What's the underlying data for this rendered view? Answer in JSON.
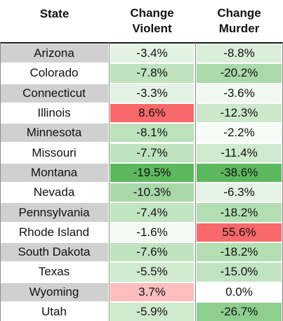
{
  "chart_data": {
    "type": "table",
    "columns": [
      {
        "key": "state",
        "label": [
          "State"
        ]
      },
      {
        "key": "violent",
        "label": [
          "Change",
          "Violent"
        ]
      },
      {
        "key": "murder",
        "label": [
          "Change",
          "Murder"
        ]
      }
    ],
    "rows": [
      {
        "state": "Arizona",
        "violent": "-3.4%",
        "murder": "-8.8%"
      },
      {
        "state": "Colorado",
        "violent": "-7.8%",
        "murder": "-20.2%"
      },
      {
        "state": "Connecticut",
        "violent": "-3.3%",
        "murder": "-3.6%"
      },
      {
        "state": "Illinois",
        "violent": "8.6%",
        "murder": "-12.3%"
      },
      {
        "state": "Minnesota",
        "violent": "-8.1%",
        "murder": "-2.2%"
      },
      {
        "state": "Missouri",
        "violent": "-7.7%",
        "murder": "-11.4%"
      },
      {
        "state": "Montana",
        "violent": "-19.5%",
        "murder": "-38.6%"
      },
      {
        "state": "Nevada",
        "violent": "-10.3%",
        "murder": "-6.3%"
      },
      {
        "state": "Pennsylvania",
        "violent": "-7.4%",
        "murder": "-18.2%"
      },
      {
        "state": "Rhode Island",
        "violent": "-1.6%",
        "murder": "55.6%"
      },
      {
        "state": "South Dakota",
        "violent": "-7.6%",
        "murder": "-18.2%"
      },
      {
        "state": "Texas",
        "violent": "-5.5%",
        "murder": "-15.0%"
      },
      {
        "state": "Wyoming",
        "violent": "3.7%",
        "murder": "0.0%"
      },
      {
        "state": "Utah",
        "violent": "-5.9%",
        "murder": "-26.7%"
      }
    ],
    "colors": {
      "state_band": "#d0d0d0",
      "zero": "#ffffff",
      "negative_max": "#5cb85c",
      "positive_max": "#f8696b"
    }
  }
}
